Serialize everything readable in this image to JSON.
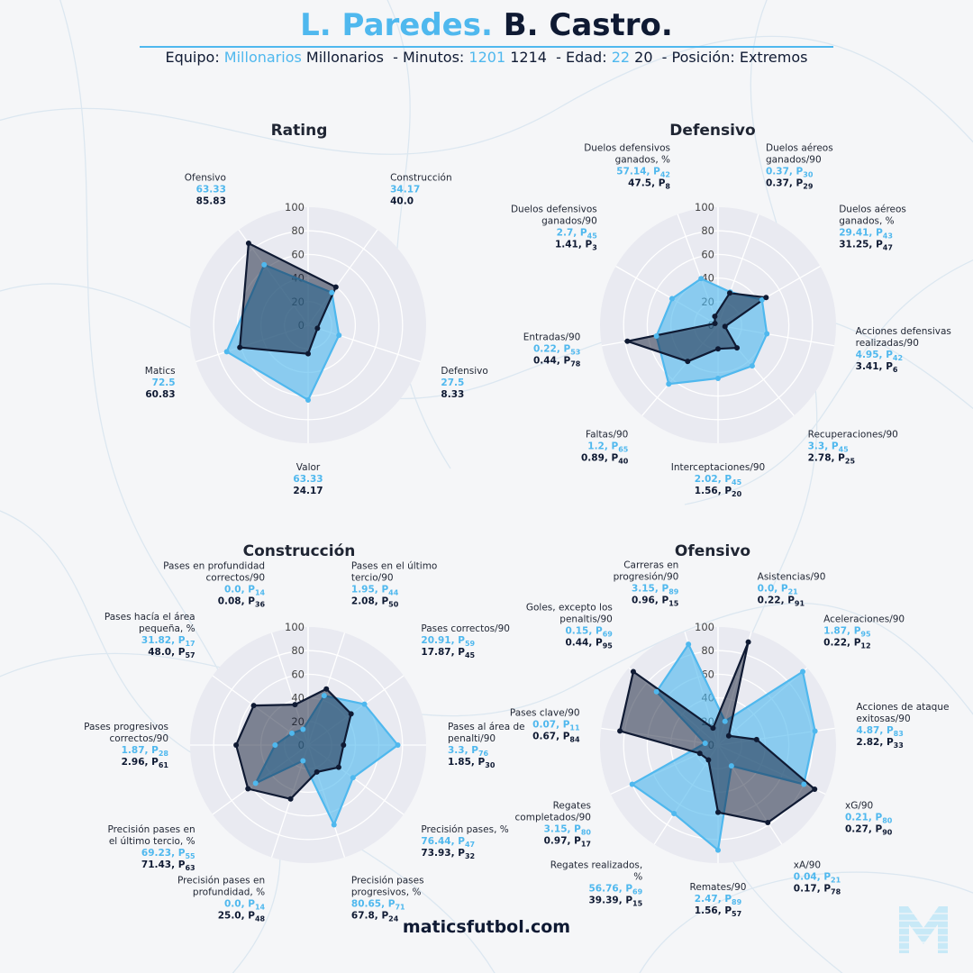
{
  "header": {
    "player1": "L. Paredes.",
    "player2": "B. Castro.",
    "equipo_label": "Equipo:",
    "team1": "Millonarios",
    "team2": "Millonarios",
    "minutos_label": "- Minutos:",
    "minutes1": "1201",
    "minutes2": "1214",
    "edad_label": "- Edad:",
    "age1": "22",
    "age2": "20",
    "posicion_label": "- Posición:",
    "position": "Extremos"
  },
  "footer": "maticsfutbol.com",
  "colors": {
    "player1": "#4fb8ee",
    "player2": "#0f1a33",
    "panel": "#e9eaf1",
    "grid": "#ffffff"
  },
  "logo_icon": "maticsfutbol-m-logo",
  "chart_data": [
    {
      "type": "radar",
      "title": "Rating",
      "rmax": 100,
      "ticks": [
        "0",
        "20",
        "40",
        "60",
        "80",
        "100"
      ],
      "series": [
        {
          "name": "L. Paredes"
        },
        {
          "name": "B. Castro"
        }
      ],
      "axes": [
        {
          "label": [
            "Construcción"
          ],
          "v1": "34.17",
          "v2": "40.0",
          "r1": 34.17,
          "r2": 40.0
        },
        {
          "label": [
            "Defensivo"
          ],
          "v1": "27.5",
          "v2": "8.33",
          "r1": 27.5,
          "r2": 8.33
        },
        {
          "label": [
            "Valor"
          ],
          "v1": "63.33",
          "v2": "24.17",
          "r1": 63.33,
          "r2": 24.17
        },
        {
          "label": [
            "Matics"
          ],
          "v1": "72.5",
          "v2": "60.83",
          "r1": 72.5,
          "r2": 60.83
        },
        {
          "label": [
            "Ofensivo"
          ],
          "v1": "63.33",
          "v2": "85.83",
          "r1": 63.33,
          "r2": 85.83
        }
      ]
    },
    {
      "type": "radar",
      "title": "Defensivo",
      "rmax": 100,
      "ticks": [
        "0",
        "20",
        "40",
        "60",
        "80",
        "100"
      ],
      "series": [
        {
          "name": "L. Paredes"
        },
        {
          "name": "B. Castro"
        }
      ],
      "axes": [
        {
          "label": [
            "Duelos aéreos",
            "ganados/90"
          ],
          "v1": "0.37",
          "p1": "30",
          "v2": "0.37",
          "p2": "29",
          "r1": 30,
          "r2": 29
        },
        {
          "label": [
            "Duelos aéreos",
            "ganados, %"
          ],
          "v1": "29.41",
          "p1": "43",
          "v2": "31.25",
          "p2": "47",
          "r1": 43,
          "r2": 47
        },
        {
          "label": [
            "Acciones defensivas",
            "realizadas/90"
          ],
          "v1": "4.95",
          "p1": "42",
          "v2": "3.41",
          "p2": "6",
          "r1": 42,
          "r2": 6
        },
        {
          "label": [
            "Recuperaciones/90"
          ],
          "v1": "3.3",
          "p1": "45",
          "v2": "2.78",
          "p2": "25",
          "r1": 45,
          "r2": 25
        },
        {
          "label": [
            "Interceptaciones/90"
          ],
          "v1": "2.02",
          "p1": "45",
          "v2": "1.56",
          "p2": "20",
          "r1": 45,
          "r2": 20
        },
        {
          "label": [
            "Faltas/90"
          ],
          "v1": "1.2",
          "p1": "65",
          "v2": "0.89",
          "p2": "40",
          "r1": 65,
          "r2": 40
        },
        {
          "label": [
            "Entradas/90"
          ],
          "v1": "0.22",
          "p1": "53",
          "v2": "0.44",
          "p2": "78",
          "r1": 53,
          "r2": 78
        },
        {
          "label": [
            "Duelos defensivos",
            "ganados/90"
          ],
          "v1": "2.7",
          "p1": "45",
          "v2": "1.41",
          "p2": "3",
          "r1": 45,
          "r2": 3
        },
        {
          "label": [
            "Duelos defensivos",
            "ganados, %"
          ],
          "v1": "57.14",
          "p1": "42",
          "v2": "47.5",
          "p2": "8",
          "r1": 42,
          "r2": 8
        }
      ]
    },
    {
      "type": "radar",
      "title": "Construcción",
      "rmax": 100,
      "ticks": [
        "0",
        "20",
        "40",
        "60",
        "80",
        "100"
      ],
      "series": [
        {
          "name": "L. Paredes"
        },
        {
          "name": "B. Castro"
        }
      ],
      "axes": [
        {
          "label": [
            "Pases en el último",
            "tercio/90"
          ],
          "v1": "1.95",
          "p1": "44",
          "v2": "2.08",
          "p2": "50",
          "r1": 44,
          "r2": 50
        },
        {
          "label": [
            "Pases correctos/90"
          ],
          "v1": "20.91",
          "p1": "59",
          "v2": "17.87",
          "p2": "45",
          "r1": 59,
          "r2": 45
        },
        {
          "label": [
            "Pases al área de",
            "penalti/90"
          ],
          "v1": "3.3",
          "p1": "76",
          "v2": "1.85",
          "p2": "30",
          "r1": 76,
          "r2": 30
        },
        {
          "label": [
            "Precisión pases, %"
          ],
          "v1": "76.44",
          "p1": "47",
          "v2": "73.93",
          "p2": "32",
          "r1": 47,
          "r2": 32
        },
        {
          "label": [
            "Precisión pases",
            "progresivos, %"
          ],
          "v1": "80.65",
          "p1": "71",
          "v2": "67.8",
          "p2": "24",
          "r1": 71,
          "r2": 24
        },
        {
          "label": [
            "Precisión pases en",
            "profundidad, %"
          ],
          "v1": "0.0",
          "p1": "14",
          "v2": "25.0",
          "p2": "48",
          "r1": 14,
          "r2": 48
        },
        {
          "label": [
            "Precisión pases en",
            "el último tercio, %"
          ],
          "v1": "69.23",
          "p1": "55",
          "v2": "71.43",
          "p2": "63",
          "r1": 55,
          "r2": 63
        },
        {
          "label": [
            "Pases progresivos",
            "correctos/90"
          ],
          "v1": "1.87",
          "p1": "28",
          "v2": "2.96",
          "p2": "61",
          "r1": 28,
          "r2": 61
        },
        {
          "label": [
            "Pases hacía el área",
            "pequeña, %"
          ],
          "v1": "31.82",
          "p1": "17",
          "v2": "48.0",
          "p2": "57",
          "r1": 17,
          "r2": 57
        },
        {
          "label": [
            "Pases en profundidad",
            "correctos/90"
          ],
          "v1": "0.0",
          "p1": "14",
          "v2": "0.08",
          "p2": "36",
          "r1": 14,
          "r2": 36
        }
      ]
    },
    {
      "type": "radar",
      "title": "Ofensivo",
      "rmax": 100,
      "ticks": [
        "0",
        "20",
        "40",
        "60",
        "80",
        "100"
      ],
      "series": [
        {
          "name": "L. Paredes"
        },
        {
          "name": "B. Castro"
        }
      ],
      "axes": [
        {
          "label": [
            "Asistencias/90"
          ],
          "v1": "0.0",
          "p1": "21",
          "v2": "0.22",
          "p2": "91",
          "r1": 21,
          "r2": 91
        },
        {
          "label": [
            "Aceleraciones/90"
          ],
          "v1": "1.87",
          "p1": "95",
          "v2": "0.22",
          "p2": "12",
          "r1": 95,
          "r2": 12
        },
        {
          "label": [
            "Acciones de ataque",
            "exitosas/90"
          ],
          "v1": "4.87",
          "p1": "83",
          "v2": "2.82",
          "p2": "33",
          "r1": 83,
          "r2": 33
        },
        {
          "label": [
            "xG/90"
          ],
          "v1": "0.21",
          "p1": "80",
          "v2": "0.27",
          "p2": "90",
          "r1": 80,
          "r2": 90
        },
        {
          "label": [
            "xA/90"
          ],
          "v1": "0.04",
          "p1": "21",
          "v2": "0.17",
          "p2": "78",
          "r1": 21,
          "r2": 78
        },
        {
          "label": [
            "Remates/90"
          ],
          "v1": "2.47",
          "p1": "89",
          "v2": "1.56",
          "p2": "57",
          "r1": 89,
          "r2": 57
        },
        {
          "label": [
            "Regates realizados,",
            "%"
          ],
          "v1": "56.76",
          "p1": "69",
          "v2": "39.39",
          "p2": "15",
          "r1": 69,
          "r2": 15
        },
        {
          "label": [
            "Regates",
            "completados/90"
          ],
          "v1": "3.15",
          "p1": "80",
          "v2": "0.97",
          "p2": "17",
          "r1": 80,
          "r2": 17
        },
        {
          "label": [
            "Pases clave/90"
          ],
          "v1": "0.07",
          "p1": "11",
          "v2": "0.67",
          "p2": "84",
          "r1": 11,
          "r2": 84
        },
        {
          "label": [
            "Goles, excepto los",
            "penaltis/90"
          ],
          "v1": "0.15",
          "p1": "69",
          "v2": "0.44",
          "p2": "95",
          "r1": 69,
          "r2": 95
        },
        {
          "label": [
            "Carreras en",
            "progresión/90"
          ],
          "v1": "3.15",
          "p1": "89",
          "v2": "0.96",
          "p2": "15",
          "r1": 89,
          "r2": 15
        }
      ]
    }
  ]
}
